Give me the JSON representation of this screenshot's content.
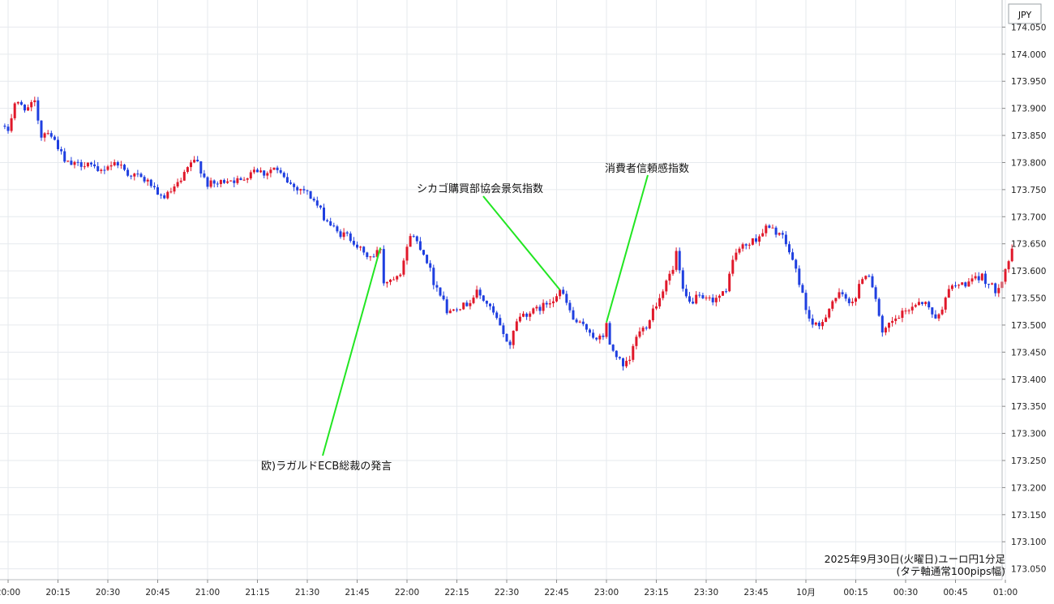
{
  "chart_data": {
    "type": "candlestick",
    "currency_label": "JPY",
    "caption_line1": "2025年9月30日(火曜日)ユーロ円1分足",
    "caption_line2": "(タテ軸通常100pips幅)",
    "ylim": [
      173.03,
      174.1
    ],
    "y_ticks": [
      "174.050",
      "174.000",
      "173.950",
      "173.900",
      "173.850",
      "173.800",
      "173.750",
      "173.700",
      "173.650",
      "173.600",
      "173.550",
      "173.500",
      "173.450",
      "173.400",
      "173.350",
      "173.300",
      "173.250",
      "173.200",
      "173.150",
      "173.100",
      "173.050"
    ],
    "x_ticks": [
      {
        "label": "20:00",
        "min": 0
      },
      {
        "label": "20:15",
        "min": 15
      },
      {
        "label": "20:30",
        "min": 30
      },
      {
        "label": "20:45",
        "min": 45
      },
      {
        "label": "21:00",
        "min": 60
      },
      {
        "label": "21:15",
        "min": 75
      },
      {
        "label": "21:30",
        "min": 90
      },
      {
        "label": "21:45",
        "min": 105
      },
      {
        "label": "22:00",
        "min": 120
      },
      {
        "label": "22:15",
        "min": 135
      },
      {
        "label": "22:30",
        "min": 150
      },
      {
        "label": "22:45",
        "min": 165
      },
      {
        "label": "23:00",
        "min": 180
      },
      {
        "label": "23:15",
        "min": 195
      },
      {
        "label": "23:30",
        "min": 210
      },
      {
        "label": "23:45",
        "min": 225
      },
      {
        "label": "10月",
        "min": 240
      },
      {
        "label": "00:15",
        "min": 255
      },
      {
        "label": "00:30",
        "min": 270
      },
      {
        "label": "00:45",
        "min": 285
      },
      {
        "label": "01:00",
        "min": 300
      }
    ],
    "colors": {
      "up": "#e0182a",
      "down": "#1f3fe0",
      "annotation_line": "#22e622",
      "grid": "#e6eaee",
      "border": "#b8bcc2"
    },
    "annotations": [
      {
        "text": "欧)ラガルドECB総裁の発言",
        "at_min": 112,
        "price": 173.643
      },
      {
        "text": "シカゴ購買部協会景気指数",
        "at_min": 166,
        "price": 173.565
      },
      {
        "text": "消費者信頼感指数",
        "at_min": 180,
        "price": 173.505
      }
    ],
    "anchors": [
      [
        0,
        173.86
      ],
      [
        2,
        173.91
      ],
      [
        4,
        173.905
      ],
      [
        6,
        173.9
      ],
      [
        8,
        173.91
      ],
      [
        10,
        173.85
      ],
      [
        12,
        173.86
      ],
      [
        15,
        173.83
      ],
      [
        17,
        173.8
      ],
      [
        20,
        173.795
      ],
      [
        24,
        173.8
      ],
      [
        27,
        173.78
      ],
      [
        30,
        173.795
      ],
      [
        33,
        173.8
      ],
      [
        36,
        173.78
      ],
      [
        39,
        173.775
      ],
      [
        43,
        173.76
      ],
      [
        45,
        173.735
      ],
      [
        48,
        173.74
      ],
      [
        52,
        173.765
      ],
      [
        55,
        173.8
      ],
      [
        57,
        173.8
      ],
      [
        60,
        173.76
      ],
      [
        63,
        173.76
      ],
      [
        66,
        173.77
      ],
      [
        70,
        173.765
      ],
      [
        74,
        173.79
      ],
      [
        77,
        173.78
      ],
      [
        80,
        173.79
      ],
      [
        83,
        173.77
      ],
      [
        86,
        173.755
      ],
      [
        89,
        173.75
      ],
      [
        92,
        173.73
      ],
      [
        95,
        173.7
      ],
      [
        97,
        173.685
      ],
      [
        99,
        173.67
      ],
      [
        102,
        173.665
      ],
      [
        104,
        173.655
      ],
      [
        107,
        173.63
      ],
      [
        110,
        173.625
      ],
      [
        112,
        173.643
      ],
      [
        113,
        173.58
      ],
      [
        115,
        173.585
      ],
      [
        118,
        173.6
      ],
      [
        120,
        173.64
      ],
      [
        121,
        173.67
      ],
      [
        124,
        173.645
      ],
      [
        126,
        173.62
      ],
      [
        128,
        173.58
      ],
      [
        131,
        173.55
      ],
      [
        132,
        173.52
      ],
      [
        134,
        173.535
      ],
      [
        137,
        173.535
      ],
      [
        139,
        173.545
      ],
      [
        141,
        173.56
      ],
      [
        144,
        173.54
      ],
      [
        147,
        173.51
      ],
      [
        149,
        173.48
      ],
      [
        151,
        173.465
      ],
      [
        153,
        173.51
      ],
      [
        155,
        173.52
      ],
      [
        158,
        173.525
      ],
      [
        161,
        173.535
      ],
      [
        164,
        173.55
      ],
      [
        166,
        173.565
      ],
      [
        168,
        173.54
      ],
      [
        170,
        173.51
      ],
      [
        172,
        173.5
      ],
      [
        175,
        173.49
      ],
      [
        177,
        173.47
      ],
      [
        179,
        173.48
      ],
      [
        180,
        173.505
      ],
      [
        181,
        173.46
      ],
      [
        183,
        173.445
      ],
      [
        185,
        173.42
      ],
      [
        187,
        173.435
      ],
      [
        189,
        173.48
      ],
      [
        192,
        173.5
      ],
      [
        194,
        173.53
      ],
      [
        196,
        173.55
      ],
      [
        198,
        173.585
      ],
      [
        200,
        173.6
      ],
      [
        201,
        173.635
      ],
      [
        203,
        173.56
      ],
      [
        205,
        173.54
      ],
      [
        207,
        173.55
      ],
      [
        210,
        173.545
      ],
      [
        213,
        173.55
      ],
      [
        216,
        173.56
      ],
      [
        217,
        173.6
      ],
      [
        219,
        173.635
      ],
      [
        221,
        173.645
      ],
      [
        223,
        173.65
      ],
      [
        226,
        173.665
      ],
      [
        228,
        173.68
      ],
      [
        230,
        173.675
      ],
      [
        232,
        173.67
      ],
      [
        234,
        173.65
      ],
      [
        236,
        173.62
      ],
      [
        238,
        173.58
      ],
      [
        240,
        173.53
      ],
      [
        242,
        173.5
      ],
      [
        244,
        173.495
      ],
      [
        246,
        173.52
      ],
      [
        248,
        173.545
      ],
      [
        250,
        173.555
      ],
      [
        253,
        173.545
      ],
      [
        255,
        173.55
      ],
      [
        257,
        173.59
      ],
      [
        259,
        173.595
      ],
      [
        261,
        173.55
      ],
      [
        263,
        173.48
      ],
      [
        265,
        173.5
      ],
      [
        268,
        173.515
      ],
      [
        271,
        173.53
      ],
      [
        274,
        173.545
      ],
      [
        276,
        173.54
      ],
      [
        278,
        173.52
      ],
      [
        280,
        173.515
      ],
      [
        282,
        173.555
      ],
      [
        284,
        173.57
      ],
      [
        287,
        173.575
      ],
      [
        290,
        173.58
      ],
      [
        293,
        173.59
      ],
      [
        295,
        173.575
      ],
      [
        297,
        173.565
      ],
      [
        299,
        173.585
      ],
      [
        301,
        173.62
      ],
      [
        302,
        173.635
      ]
    ]
  }
}
